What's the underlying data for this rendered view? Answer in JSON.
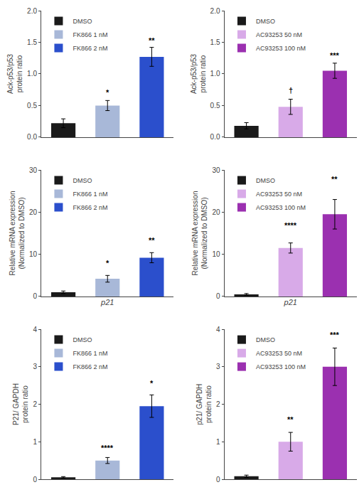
{
  "chart_data": [
    {
      "type": "bar",
      "categories": [
        "DMSO",
        "FK866 1 nM",
        "FK866 2 nM"
      ],
      "values": [
        0.22,
        0.5,
        1.27
      ],
      "errors": [
        0.07,
        0.08,
        0.15
      ],
      "colors": [
        "#1a1a1a",
        "#a8b8d8",
        "#2b4fcc"
      ],
      "ylabel": "Ack-p53/p53\nprotein ratio",
      "ylim": [
        0,
        2.0
      ],
      "yticks": [
        {
          "value": 0,
          "label": "0.0"
        },
        {
          "value": 0.5,
          "label": "0.5"
        },
        {
          "value": 1.0,
          "label": "1.0"
        },
        {
          "value": 1.5,
          "label": "1.5"
        },
        {
          "value": 2.0,
          "label": "2.0"
        }
      ],
      "annotations": [
        {
          "category": "FK866 1 nM",
          "y": 0.62,
          "text": "*"
        },
        {
          "category": "FK866 2 nM",
          "y": 1.44,
          "text": "**"
        }
      ],
      "legend": "upper left",
      "tick_labels": "y",
      "grid": false
    },
    {
      "type": "bar",
      "categories": [
        "DMSO",
        "AC93253 50 nM",
        "AC93253 100 nM"
      ],
      "values": [
        0.18,
        0.48,
        1.05
      ],
      "errors": [
        0.05,
        0.12,
        0.12
      ],
      "colors": [
        "#1a1a1a",
        "#d8aae8",
        "#9b30b0"
      ],
      "ylabel": "Ack-p53/p53\nprotein ratio",
      "ylim": [
        0,
        2.0
      ],
      "yticks": [
        {
          "value": 0,
          "label": "0.0"
        },
        {
          "value": 0.5,
          "label": "0.5"
        },
        {
          "value": 1.0,
          "label": "1.0"
        },
        {
          "value": 1.5,
          "label": "1.5"
        },
        {
          "value": 2.0,
          "label": "2.0"
        }
      ],
      "annotations": [
        {
          "category": "AC93253 50 nM",
          "y": 0.65,
          "text": "†"
        },
        {
          "category": "AC93253 100 nM",
          "y": 1.2,
          "text": "***"
        }
      ],
      "legend": "upper left",
      "tick_labels": "y",
      "grid": false
    },
    {
      "type": "bar",
      "categories": [
        "DMSO",
        "FK866 1 nM",
        "FK866 2 nM"
      ],
      "values": [
        1.0,
        4.2,
        9.2
      ],
      "errors": [
        0.3,
        0.8,
        1.2
      ],
      "colors": [
        "#1a1a1a",
        "#a8b8d8",
        "#2b4fcc"
      ],
      "ylabel": "Relative mRNA expression\n(Normalized to DMSO)",
      "xlabel": "p21",
      "ylim": [
        0,
        30
      ],
      "yticks": [
        0,
        10,
        20,
        30
      ],
      "annotations": [
        {
          "category": "FK866 1 nM",
          "y": 6.5,
          "text": "*"
        },
        {
          "category": "FK866 2 nM",
          "y": 12.0,
          "text": "**"
        }
      ],
      "legend": "upper left",
      "tick_labels": "y",
      "grid": false
    },
    {
      "type": "bar",
      "categories": [
        "DMSO",
        "AC93253 50 nM",
        "AC93253 100 nM"
      ],
      "values": [
        0.5,
        11.5,
        19.5
      ],
      "errors": [
        0.2,
        1.2,
        3.5
      ],
      "colors": [
        "#1a1a1a",
        "#d8aae8",
        "#9b30b0"
      ],
      "ylabel": "Relative mRNA expression\n(Normalized to DMSO)",
      "xlabel": "p21",
      "ylim": [
        0,
        30
      ],
      "yticks": [
        0,
        10,
        20,
        30
      ],
      "annotations": [
        {
          "category": "AC93253 50 nM",
          "y": 15.5,
          "text": "****"
        },
        {
          "category": "AC93253 100 nM",
          "y": 26.5,
          "text": "**"
        }
      ],
      "legend": "upper left",
      "tick_labels": "y",
      "grid": false
    },
    {
      "type": "bar",
      "categories": [
        "DMSO",
        "FK866 1 nM",
        "FK866 2 nM"
      ],
      "values": [
        0.05,
        0.5,
        1.95
      ],
      "errors": [
        0.02,
        0.08,
        0.3
      ],
      "colors": [
        "#1a1a1a",
        "#a8b8d8",
        "#2b4fcc"
      ],
      "ylabel": "P21/ GAPDH\nprotein ratio",
      "ylim": [
        0,
        4
      ],
      "yticks": [
        0,
        1,
        2,
        3,
        4
      ],
      "annotations": [
        {
          "category": "FK866 1 nM",
          "y": 0.68,
          "text": "****"
        },
        {
          "category": "FK866 2 nM",
          "y": 2.4,
          "text": "*"
        }
      ],
      "legend": "upper left",
      "tick_labels": "y",
      "grid": false
    },
    {
      "type": "bar",
      "categories": [
        "DMSO",
        "AC93253 50 nM",
        "AC93253 100 nM"
      ],
      "values": [
        0.08,
        1.0,
        3.0
      ],
      "errors": [
        0.03,
        0.25,
        0.5
      ],
      "colors": [
        "#1a1a1a",
        "#d8aae8",
        "#9b30b0"
      ],
      "ylabel": "p21/ GAPDH\nprotein ratio",
      "ylim": [
        0,
        4
      ],
      "yticks": [
        0,
        1,
        2,
        3,
        4
      ],
      "annotations": [
        {
          "category": "AC93253 50 nM",
          "y": 1.45,
          "text": "**"
        },
        {
          "category": "AC93253 100 nM",
          "y": 3.7,
          "text": "***"
        }
      ],
      "legend": "upper left",
      "tick_labels": "y",
      "grid": false
    }
  ]
}
